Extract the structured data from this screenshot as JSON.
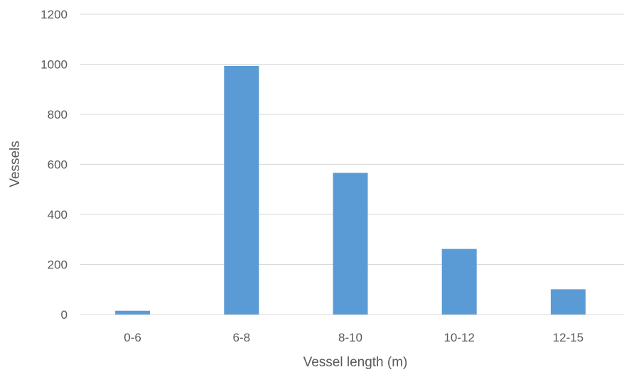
{
  "chart_data": {
    "type": "bar",
    "title": "",
    "xlabel": "Vessel length (m)",
    "ylabel": "Vessels",
    "categories": [
      "0-6",
      "6-8",
      "8-10",
      "10-12",
      "12-15"
    ],
    "values": [
      15,
      993,
      566,
      262,
      101
    ],
    "ylim": [
      0,
      1200
    ],
    "yticks": [
      0,
      200,
      400,
      600,
      800,
      1000,
      1200
    ],
    "ytick_labels": [
      "0",
      "200",
      "400",
      "600",
      "800",
      "1000",
      "1200"
    ],
    "grid": true,
    "legend": "none",
    "colors": {
      "bar": "#5B9BD5",
      "grid": "#D9D9D9",
      "text": "#595959"
    }
  }
}
